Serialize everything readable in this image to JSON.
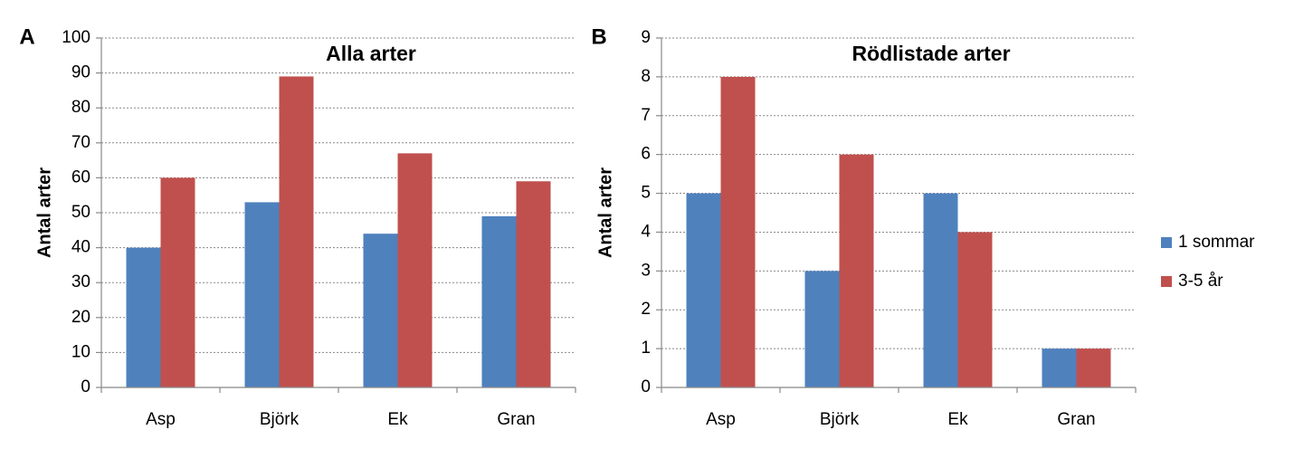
{
  "chart_data": [
    {
      "type": "bar",
      "panel": "A",
      "title": "Alla arter",
      "y_label": "Antal arter",
      "categories": [
        "Asp",
        "Björk",
        "Ek",
        "Gran"
      ],
      "series": [
        {
          "color": "#4f81bd",
          "values": [
            40,
            53,
            44,
            49
          ]
        },
        {
          "color": "#c0504d",
          "values": [
            60,
            89,
            67,
            59
          ]
        }
      ],
      "ylim": [
        0,
        100
      ],
      "yticks": [
        0,
        10,
        20,
        30,
        40,
        50,
        60,
        70,
        80,
        90,
        100
      ],
      "grid": true
    },
    {
      "type": "bar",
      "panel": "B",
      "title": "Rödlistade arter",
      "y_label": "Antal arter",
      "categories": [
        "Asp",
        "Björk",
        "Ek",
        "Gran"
      ],
      "series": [
        {
          "name": "1 sommar",
          "color": "#4f81bd",
          "values": [
            5,
            3,
            5,
            1
          ]
        },
        {
          "name": "3-5 år",
          "color": "#c0504d",
          "values": [
            8,
            6,
            4,
            1
          ]
        }
      ],
      "ylim": [
        0,
        9
      ],
      "yticks": [
        0,
        1,
        2,
        3,
        4,
        5,
        6,
        7,
        8,
        9
      ],
      "grid": true,
      "legend": "right"
    }
  ]
}
